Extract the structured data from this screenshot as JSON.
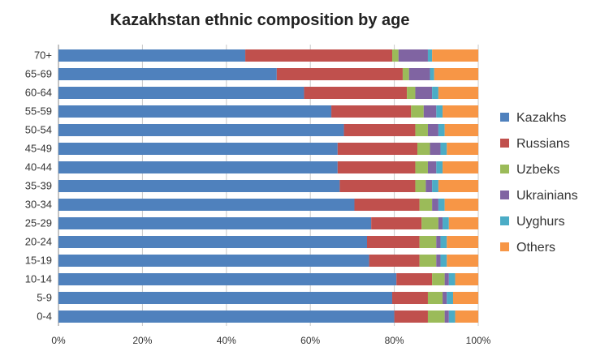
{
  "chart_data": {
    "type": "bar",
    "orientation": "horizontal",
    "stacked": "percent",
    "title": "Kazakhstan ethnic composition by age",
    "xlabel": "",
    "ylabel": "",
    "xlim": [
      0,
      100
    ],
    "x_tick_labels": [
      "0%",
      "20%",
      "40%",
      "60%",
      "80%",
      "100%"
    ],
    "grid": "vertical",
    "legend_position": "right",
    "categories": [
      "70+",
      "65-69",
      "60-64",
      "55-59",
      "50-54",
      "45-49",
      "40-44",
      "35-39",
      "30-34",
      "25-29",
      "20-24",
      "15-19",
      "10-14",
      "5-9",
      "0-4"
    ],
    "series": [
      {
        "name": "Kazakhs",
        "color": "#4f81bd",
        "values": [
          44.5,
          52.0,
          58.5,
          65.0,
          68.0,
          66.5,
          66.5,
          67.0,
          70.5,
          74.5,
          73.5,
          74.0,
          80.5,
          79.5,
          80.0
        ]
      },
      {
        "name": "Russians",
        "color": "#c0504d",
        "values": [
          35.0,
          30.0,
          24.5,
          19.0,
          17.0,
          19.0,
          18.5,
          18.0,
          15.5,
          12.0,
          12.5,
          12.0,
          8.5,
          8.5,
          8.0
        ]
      },
      {
        "name": "Uzbeks",
        "color": "#9bbb59",
        "values": [
          1.5,
          1.5,
          2.0,
          3.0,
          3.0,
          3.0,
          3.0,
          2.5,
          3.0,
          4.0,
          4.0,
          4.0,
          3.0,
          3.5,
          4.0
        ]
      },
      {
        "name": "Ukrainians",
        "color": "#8064a2",
        "values": [
          7.0,
          5.0,
          4.0,
          3.0,
          2.5,
          2.5,
          2.0,
          1.5,
          1.5,
          1.0,
          1.0,
          1.0,
          1.0,
          1.0,
          1.0
        ]
      },
      {
        "name": "Uyghurs",
        "color": "#4bacc6",
        "values": [
          1.0,
          1.0,
          1.5,
          1.5,
          1.5,
          1.5,
          1.5,
          1.5,
          1.5,
          1.5,
          1.5,
          1.5,
          1.5,
          1.5,
          1.5
        ]
      },
      {
        "name": "Others",
        "color": "#f79646",
        "values": [
          11.0,
          10.5,
          9.5,
          8.5,
          8.0,
          7.5,
          8.5,
          9.5,
          8.0,
          7.0,
          7.5,
          7.5,
          5.5,
          6.0,
          5.5
        ]
      }
    ]
  }
}
